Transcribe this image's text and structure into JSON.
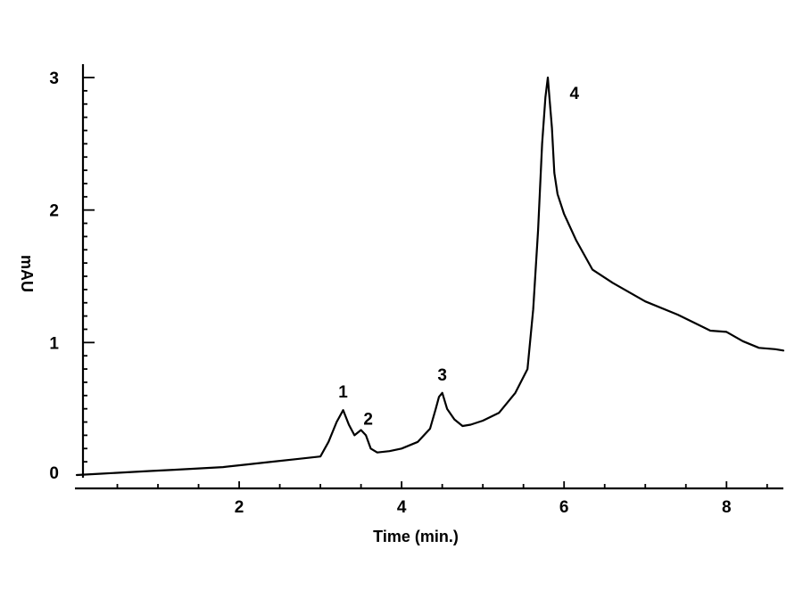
{
  "chart_data": {
    "type": "line",
    "title": "",
    "xlabel": "Time (min.)",
    "ylabel": "mAU",
    "xlim": [
      0,
      8.7
    ],
    "ylim": [
      0,
      3
    ],
    "grid": false,
    "legend": "none",
    "x_ticks": [
      2,
      4,
      6,
      8
    ],
    "x_tick_labels": [
      "2",
      "4",
      "6",
      "8"
    ],
    "y_ticks": [
      0,
      1,
      2,
      3
    ],
    "y_tick_labels": [
      "0",
      "1",
      "2",
      "3"
    ],
    "series": [
      {
        "x": [
          0.0,
          0.3,
          0.6,
          0.9,
          1.2,
          1.5,
          1.8,
          2.1,
          2.4,
          2.7,
          3.0,
          3.1,
          3.2,
          3.28,
          3.35,
          3.42,
          3.5,
          3.56,
          3.62,
          3.7,
          3.85,
          4.0,
          4.2,
          4.35,
          4.42,
          4.46,
          4.5,
          4.56,
          4.65,
          4.75,
          4.85,
          5.0,
          5.2,
          5.4,
          5.55,
          5.62,
          5.68,
          5.73,
          5.77,
          5.8,
          5.82,
          5.85,
          5.88,
          5.92,
          6.0,
          6.15,
          6.35,
          6.6,
          7.0,
          7.4,
          7.7,
          7.8,
          8.0,
          8.2,
          8.4,
          8.6,
          8.7
        ],
        "y": [
          0.0,
          0.01,
          0.02,
          0.03,
          0.04,
          0.05,
          0.06,
          0.08,
          0.1,
          0.12,
          0.14,
          0.25,
          0.4,
          0.49,
          0.38,
          0.3,
          0.34,
          0.3,
          0.2,
          0.17,
          0.18,
          0.2,
          0.25,
          0.35,
          0.5,
          0.59,
          0.62,
          0.5,
          0.42,
          0.37,
          0.38,
          0.41,
          0.47,
          0.62,
          0.8,
          1.25,
          1.85,
          2.5,
          2.85,
          3.0,
          2.85,
          2.62,
          2.28,
          2.12,
          1.97,
          1.77,
          1.55,
          1.45,
          1.31,
          1.21,
          1.12,
          1.09,
          1.08,
          1.01,
          0.96,
          0.95,
          0.94
        ]
      }
    ],
    "annotations": [
      {
        "text": "1",
        "x": 3.28,
        "y": 0.49
      },
      {
        "text": "2",
        "x": 3.5,
        "y": 0.34
      },
      {
        "text": "3",
        "x": 4.5,
        "y": 0.62
      },
      {
        "text": "4",
        "x": 5.82,
        "y": 3.0
      }
    ]
  }
}
